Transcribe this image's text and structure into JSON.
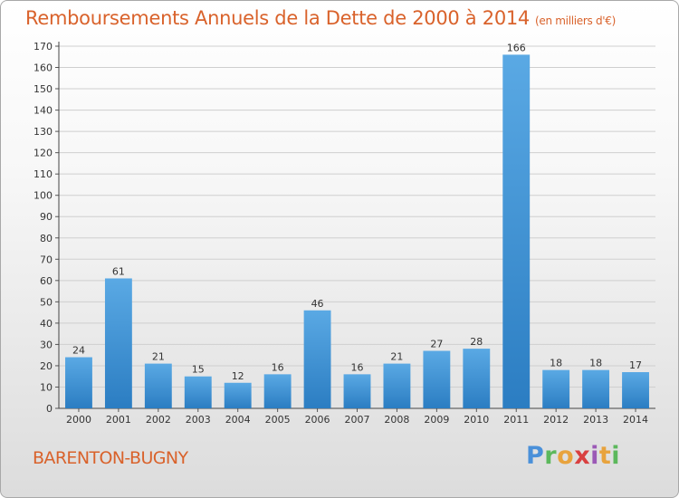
{
  "title": {
    "main": "Remboursements Annuels de la Dette de 2000 à 2014",
    "unit": "(en milliers d'€)"
  },
  "commune": "BARENTON-BUGNY",
  "logo": {
    "letters": [
      "P",
      "r",
      "o",
      "x",
      "i",
      "t",
      "i"
    ],
    "colors": [
      "#4a90d9",
      "#5cb85c",
      "#e8a33d",
      "#d94040",
      "#9b59b6",
      "#e8a33d",
      "#5cb85c"
    ]
  },
  "colors": {
    "bar_top": "#5aa9e4",
    "bar_bottom": "#2b7dc2",
    "title": "#d9622b",
    "grid": "#cfcfcf"
  },
  "chart_data": {
    "type": "bar",
    "categories": [
      "2000",
      "2001",
      "2002",
      "2003",
      "2004",
      "2005",
      "2006",
      "2007",
      "2008",
      "2009",
      "2010",
      "2011",
      "2012",
      "2013",
      "2014"
    ],
    "values": [
      24,
      61,
      21,
      15,
      12,
      16,
      46,
      16,
      21,
      27,
      28,
      166,
      18,
      18,
      17
    ],
    "ylim": [
      0,
      170
    ],
    "yticks": [
      0,
      10,
      20,
      30,
      40,
      50,
      60,
      70,
      80,
      90,
      100,
      110,
      120,
      130,
      140,
      150,
      160,
      170
    ],
    "grid": true,
    "data_labels": true
  }
}
